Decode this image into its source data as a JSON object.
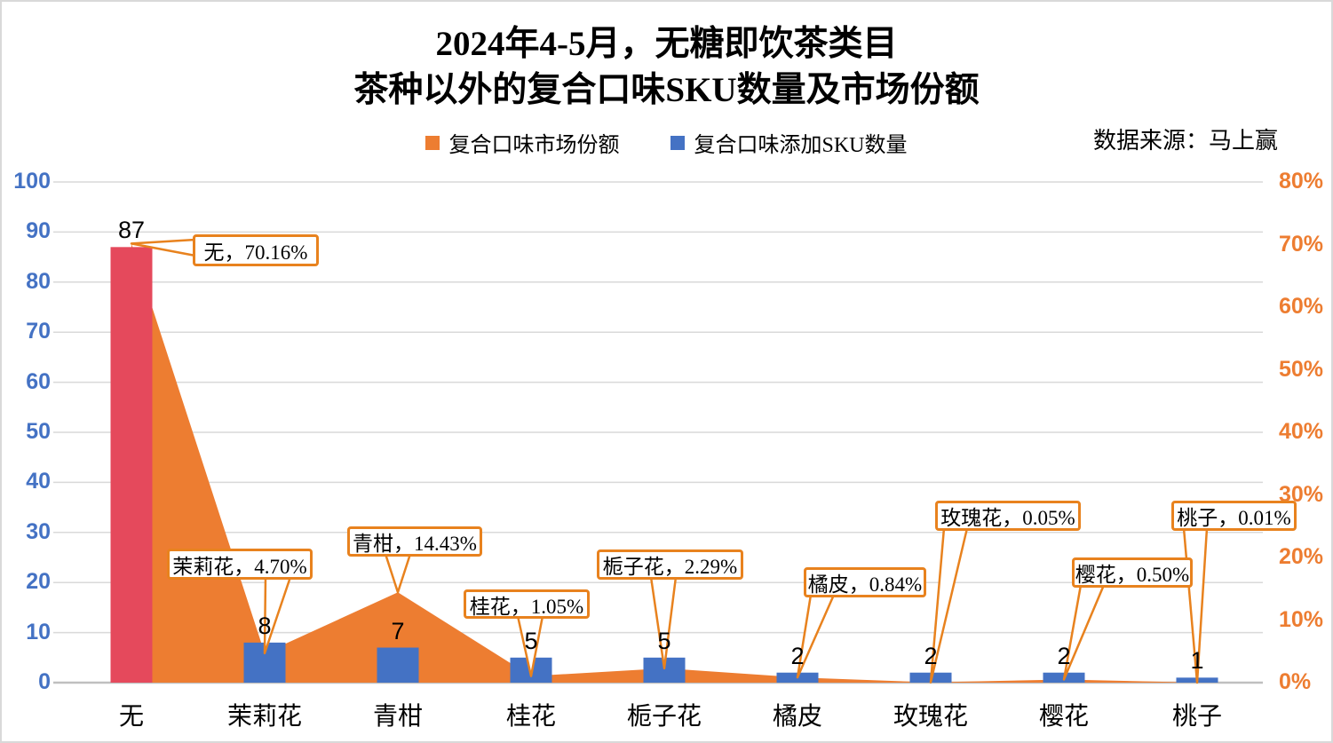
{
  "page": {
    "background": "#FFFFFF",
    "border_color": "#D9D9D9"
  },
  "title": {
    "line1": "2024年4-5月，无糖即饮茶类目",
    "line2": "茶种以外的复合口味SKU数量及市场份额"
  },
  "source_note": "数据来源：马上赢",
  "legend": {
    "items": [
      {
        "label": "复合口味市场份额",
        "color": "#ED7D31"
      },
      {
        "label": "复合口味添加SKU数量",
        "color": "#4472C4"
      }
    ]
  },
  "chart_data": {
    "type": "combo",
    "categories": [
      "无",
      "茉莉花",
      "青柑",
      "桂花",
      "栀子花",
      "橘皮",
      "玫瑰花",
      "樱花",
      "桃子"
    ],
    "series": [
      {
        "name": "复合口味添加SKU数量",
        "type": "bar",
        "axis": "left",
        "color": "#4472C4",
        "highlight_first_color": "#E5495C",
        "values": [
          87,
          8,
          7,
          5,
          5,
          2,
          2,
          2,
          1
        ],
        "data_labels": [
          "87",
          "8",
          "7",
          "5",
          "5",
          "2",
          "2",
          "2",
          "1"
        ]
      },
      {
        "name": "复合口味市场份额",
        "type": "area",
        "axis": "right",
        "color": "#ED7D31",
        "values": [
          70.16,
          4.7,
          14.43,
          1.05,
          2.29,
          0.84,
          0.05,
          0.5,
          0.01
        ]
      }
    ],
    "left_axis": {
      "min": 0,
      "max": 100,
      "step": 10,
      "color": "#4472C4",
      "ticks": [
        "0",
        "10",
        "20",
        "30",
        "40",
        "50",
        "60",
        "70",
        "80",
        "90",
        "100"
      ]
    },
    "right_axis": {
      "min": 0,
      "max": 80,
      "step": 10,
      "color": "#ED7D31",
      "ticks": [
        "0%",
        "10%",
        "20%",
        "30%",
        "40%",
        "50%",
        "60%",
        "70%",
        "80%"
      ]
    },
    "gridlines": true,
    "gridline_color": "#D9D9D9",
    "baseline_color": "#BFBFBF",
    "legend_position": "top",
    "callout_style": {
      "border_color": "#E8821E",
      "fill": "#FFFFFF"
    },
    "callouts": [
      {
        "category": "无",
        "text": "无，70.16%"
      },
      {
        "category": "茉莉花",
        "text": "茉莉花，4.70%"
      },
      {
        "category": "青柑",
        "text": "青柑，14.43%"
      },
      {
        "category": "桂花",
        "text": "桂花，1.05%"
      },
      {
        "category": "栀子花",
        "text": "栀子花，2.29%"
      },
      {
        "category": "橘皮",
        "text": "橘皮，0.84%"
      },
      {
        "category": "玫瑰花",
        "text": "玫瑰花，0.05%"
      },
      {
        "category": "樱花",
        "text": "樱花，0.50%"
      },
      {
        "category": "桃子",
        "text": "桃子，0.01%"
      }
    ]
  }
}
